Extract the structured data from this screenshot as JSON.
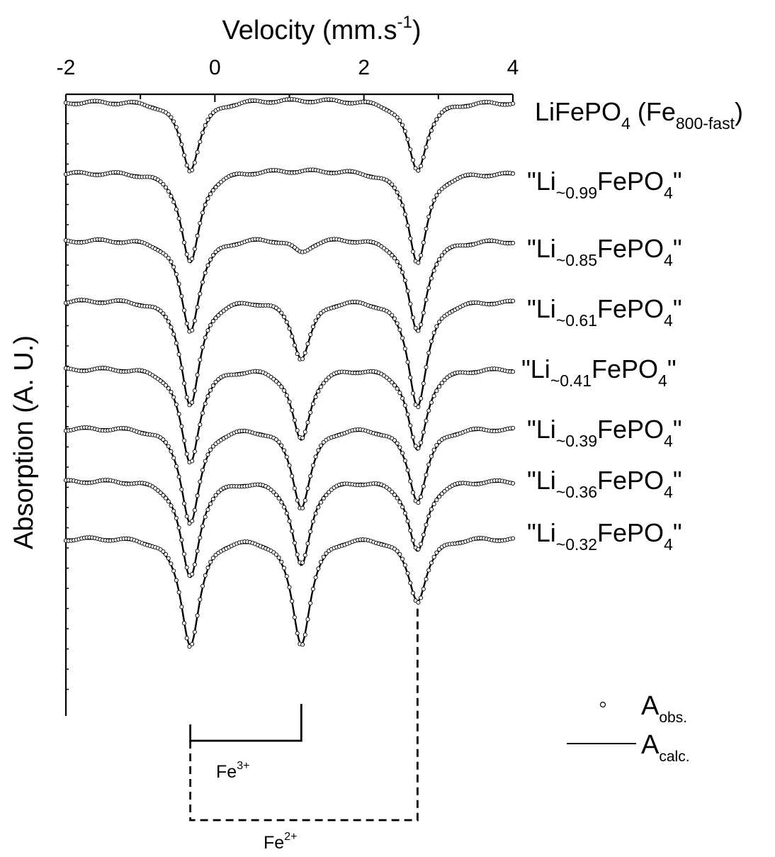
{
  "chart_data": {
    "type": "line",
    "title": "",
    "xlabel": "Velocity (mm.s",
    "xlabel_sup": "-1",
    "xlabel_close": ")",
    "ylabel": "Absorption (A. U.)",
    "xlim": [
      -2,
      4
    ],
    "x_ticks": [
      "-2",
      "0",
      "2",
      "4"
    ],
    "x_axis_position": "top",
    "grid": false,
    "legend_position": "bottom-right",
    "legend": [
      {
        "marker": "circle",
        "label_main": "A",
        "label_sub": "obs."
      },
      {
        "marker": "line",
        "label_main": "A",
        "label_sub": "calc."
      }
    ],
    "series": [
      {
        "label_main": "LiFePO",
        "label_sub": "4",
        "label_tail": " (Fe",
        "label_sub2": "800-fast",
        "label_end": ")",
        "peaks": [
          {
            "center": -0.33,
            "depth": 1.0
          },
          {
            "center": 2.72,
            "depth": 1.0
          }
        ]
      },
      {
        "label_main": "\"Li",
        "label_sub": "~0.99",
        "label_tail": "FePO",
        "label_sub2": "4",
        "label_end": "\"",
        "peaks": [
          {
            "center": -0.33,
            "depth": 1.0
          },
          {
            "center": 2.72,
            "depth": 1.0
          }
        ]
      },
      {
        "label_main": "\"Li",
        "label_sub": "~0.85",
        "label_tail": "FePO",
        "label_sub2": "4",
        "label_end": "\"",
        "peaks": [
          {
            "center": -0.33,
            "depth": 1.0
          },
          {
            "center": 1.16,
            "depth": 0.15
          },
          {
            "center": 2.72,
            "depth": 1.0
          }
        ]
      },
      {
        "label_main": "\"Li",
        "label_sub": "~0.61",
        "label_tail": "FePO",
        "label_sub2": "4",
        "label_end": "\"",
        "peaks": [
          {
            "center": -0.33,
            "depth": 1.0
          },
          {
            "center": 1.16,
            "depth": 0.56
          },
          {
            "center": 2.72,
            "depth": 1.0
          }
        ]
      },
      {
        "label_main": "\"Li",
        "label_sub": "~0.41",
        "label_tail": "FePO",
        "label_sub2": "4",
        "label_end": "\"",
        "peaks": [
          {
            "center": -0.33,
            "depth": 1.0
          },
          {
            "center": 1.16,
            "depth": 0.76
          },
          {
            "center": 2.72,
            "depth": 0.86
          }
        ]
      },
      {
        "label_main": "\"Li",
        "label_sub": "~0.39",
        "label_tail": "FePO",
        "label_sub2": "4",
        "label_end": "\"",
        "peaks": [
          {
            "center": -0.33,
            "depth": 1.0
          },
          {
            "center": 1.16,
            "depth": 0.84
          },
          {
            "center": 2.72,
            "depth": 0.77
          }
        ]
      },
      {
        "label_main": "\"Li",
        "label_sub": "~0.36",
        "label_tail": "FePO",
        "label_sub2": "4",
        "label_end": "\"",
        "peaks": [
          {
            "center": -0.33,
            "depth": 1.0
          },
          {
            "center": 1.16,
            "depth": 0.88
          },
          {
            "center": 2.72,
            "depth": 0.73
          }
        ]
      },
      {
        "label_main": "\"Li",
        "label_sub": "~0.32",
        "label_tail": "FePO",
        "label_sub2": "4",
        "label_end": "\"",
        "peaks": [
          {
            "center": -0.33,
            "depth": 1.0
          },
          {
            "center": 1.16,
            "depth": 0.99
          },
          {
            "center": 2.72,
            "depth": 0.59
          }
        ]
      }
    ],
    "annotations": [
      {
        "label_main": "Fe",
        "label_sup": "3+",
        "from": -0.33,
        "to": 1.16,
        "style": "solid"
      },
      {
        "label_main": "Fe",
        "label_sup": "2+",
        "from": -0.33,
        "to": 2.72,
        "style": "dashed"
      }
    ]
  }
}
